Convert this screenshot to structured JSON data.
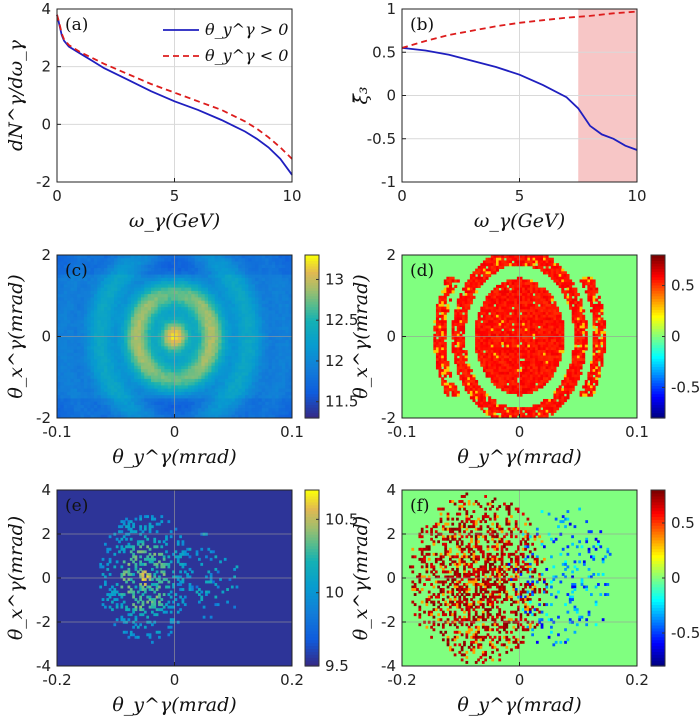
{
  "chart_data": [
    {
      "panel": "(a)",
      "type": "line",
      "xlabel": "ω_γ(GeV)",
      "ylabel": "dN^γ/dω_γ",
      "xlim": [
        0,
        10
      ],
      "ylim": [
        -2,
        4
      ],
      "xticks": [
        "0",
        "5",
        "10"
      ],
      "yticks": [
        "-2",
        "0",
        "2",
        "4"
      ],
      "grid": true,
      "legend": "top-right",
      "series": [
        {
          "name": "θ_y^γ > 0",
          "color": "#1f1fbf",
          "dash": "solid",
          "x": [
            0,
            0.1,
            0.2,
            0.3,
            0.5,
            0.8,
            1,
            1.5,
            2,
            3,
            4,
            5,
            6,
            7,
            8,
            8.5,
            9,
            9.5,
            10
          ],
          "y": [
            3.8,
            3.45,
            3.1,
            2.9,
            2.7,
            2.55,
            2.45,
            2.2,
            1.95,
            1.55,
            1.15,
            0.8,
            0.5,
            0.15,
            -0.25,
            -0.5,
            -0.8,
            -1.2,
            -1.75
          ]
        },
        {
          "name": "θ_y^γ < 0",
          "color": "#dd1c1c",
          "dash": "dashed",
          "x": [
            0,
            0.1,
            0.2,
            0.3,
            0.5,
            0.8,
            1,
            1.5,
            2,
            3,
            4,
            5,
            6,
            7,
            8,
            8.5,
            9,
            9.5,
            10
          ],
          "y": [
            3.8,
            3.5,
            3.15,
            2.95,
            2.75,
            2.6,
            2.5,
            2.3,
            2.1,
            1.75,
            1.4,
            1.1,
            0.8,
            0.5,
            0.1,
            -0.15,
            -0.45,
            -0.8,
            -1.2
          ]
        }
      ]
    },
    {
      "panel": "(b)",
      "type": "line",
      "xlabel": "ω_γ(GeV)",
      "ylabel": "ξ̄₃",
      "xlim": [
        0,
        10
      ],
      "ylim": [
        -1,
        1
      ],
      "xticks": [
        "0",
        "5",
        "10"
      ],
      "yticks": [
        "-1",
        "-0.5",
        "0",
        "0.5",
        "1"
      ],
      "grid": true,
      "shaded_region": {
        "x": [
          7.5,
          10
        ],
        "color": "#f7c6c6"
      },
      "series": [
        {
          "color": "#1f1fbf",
          "dash": "solid",
          "x": [
            0,
            1,
            2,
            3,
            4,
            5,
            6,
            7,
            7.5,
            8,
            8.5,
            9,
            9.5,
            10
          ],
          "y": [
            0.55,
            0.52,
            0.47,
            0.4,
            0.33,
            0.24,
            0.12,
            -0.02,
            -0.15,
            -0.35,
            -0.45,
            -0.5,
            -0.58,
            -0.63
          ]
        },
        {
          "color": "#dd1c1c",
          "dash": "dashed",
          "x": [
            0,
            1,
            2,
            3,
            4,
            5,
            6,
            7,
            8,
            9,
            10
          ],
          "y": [
            0.55,
            0.63,
            0.7,
            0.75,
            0.8,
            0.84,
            0.87,
            0.9,
            0.92,
            0.95,
            0.97
          ]
        }
      ]
    },
    {
      "panel": "(c)",
      "type": "heatmap",
      "xlabel": "θ_y^γ(mrad)",
      "ylabel": "θ_x^γ(mrad)",
      "xlim": [
        -0.1,
        0.1
      ],
      "ylim": [
        -2,
        2
      ],
      "xticks": [
        "-0.1",
        "0",
        "0.1"
      ],
      "yticks": [
        "-2",
        "0",
        "2"
      ],
      "colorbar": {
        "range": [
          11.3,
          13.3
        ],
        "ticks": [
          "11.5",
          "12",
          "12.5",
          "13"
        ],
        "colormap": "parula"
      }
    },
    {
      "panel": "(d)",
      "type": "heatmap",
      "xlabel": "θ_y^γ(mrad)",
      "ylabel": "θ_x^γ(mrad)",
      "xlim": [
        -0.1,
        0.1
      ],
      "ylim": [
        -2,
        2
      ],
      "xticks": [
        "-0.1",
        "0",
        "0.1"
      ],
      "yticks": [
        "-2",
        "0",
        "2"
      ],
      "colorbar": {
        "range": [
          -0.8,
          0.8
        ],
        "ticks": [
          "-0.5",
          "0",
          "0.5"
        ],
        "colormap": "jet"
      }
    },
    {
      "panel": "(e)",
      "type": "heatmap",
      "xlabel": "θ_y^γ(mrad)",
      "ylabel": "θ_x^γ(mrad)",
      "xlim": [
        -0.2,
        0.2
      ],
      "ylim": [
        -4,
        4
      ],
      "xticks": [
        "-0.2",
        "0",
        "0.2"
      ],
      "yticks": [
        "-4",
        "-2",
        "0",
        "2",
        "4"
      ],
      "colorbar": {
        "range": [
          9.5,
          10.7
        ],
        "ticks": [
          "9.5",
          "10",
          "10.5"
        ],
        "colormap": "parula"
      }
    },
    {
      "panel": "(f)",
      "type": "heatmap",
      "xlabel": "θ_y^γ(mrad)",
      "ylabel": "θ_x^γ(mrad)",
      "xlim": [
        -0.2,
        0.2
      ],
      "ylim": [
        -4,
        4
      ],
      "xticks": [
        "-0.2",
        "0",
        "0.2"
      ],
      "yticks": [
        "-4",
        "-2",
        "0",
        "2",
        "4"
      ],
      "colorbar": {
        "range": [
          -0.8,
          0.8
        ],
        "ticks": [
          "-0.5",
          "0",
          "0.5"
        ],
        "colormap": "jet"
      }
    }
  ]
}
